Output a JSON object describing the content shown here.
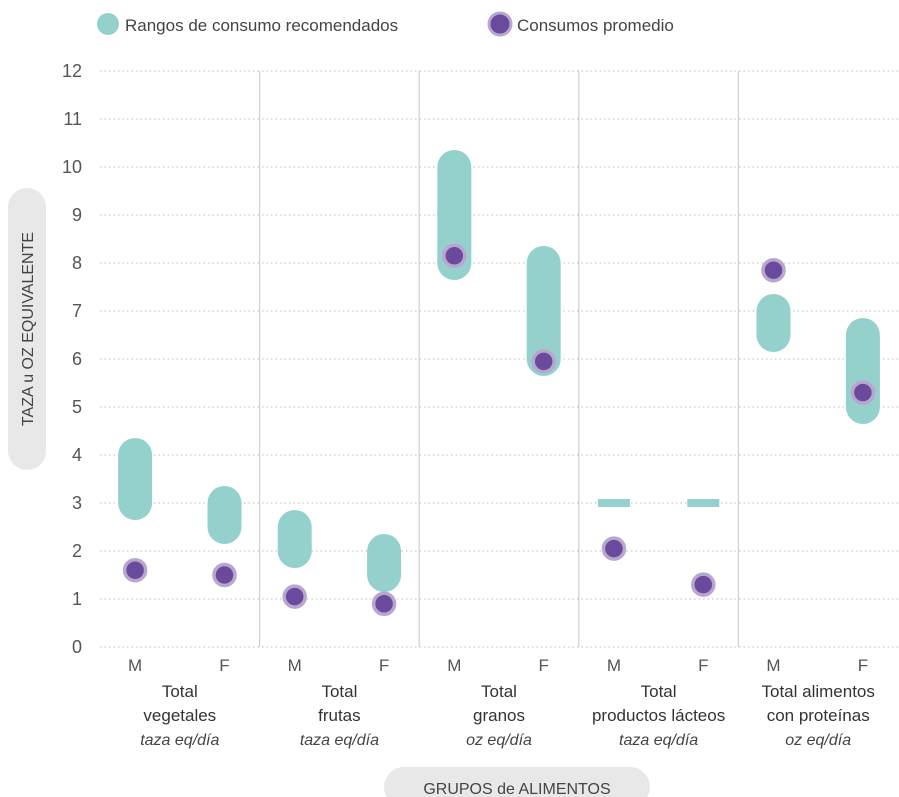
{
  "chart_data": {
    "type": "range-dot",
    "ylabel": "TAZA u OZ EQUIVALENTE",
    "xlabel": "GRUPOS de ALIMENTOS",
    "ylim": [
      0,
      12
    ],
    "yticks": [
      0,
      1,
      2,
      3,
      4,
      5,
      6,
      7,
      8,
      9,
      10,
      11,
      12
    ],
    "grid": "horizontal dotted",
    "legend_position": "top-left",
    "legend": [
      {
        "label": "Rangos de consumo recomendados",
        "color": "#94d1cd"
      },
      {
        "label": "Consumos promedio",
        "color": "#6a4a9c"
      }
    ],
    "groups": [
      {
        "line1": "Total",
        "line2": "vegetales",
        "unit": "taza eq/día"
      },
      {
        "line1": "Total",
        "line2": "frutas",
        "unit": "taza eq/día"
      },
      {
        "line1": "Total",
        "line2": "granos",
        "unit": "oz eq/día"
      },
      {
        "line1": "Total",
        "line2": "productos lácteos",
        "unit": "taza eq/día"
      },
      {
        "line1": "Total alimentos",
        "line2": "con proteínas",
        "unit": "oz eq/día"
      }
    ],
    "series": [
      {
        "name": "Rangos de consumo recomendados",
        "ranges": [
          [
            3.0,
            4.0
          ],
          [
            2.5,
            3.0
          ],
          [
            2.0,
            2.5
          ],
          [
            1.5,
            2.0
          ],
          [
            8.0,
            10.0
          ],
          [
            6.0,
            8.0
          ],
          [
            3.0,
            3.0
          ],
          [
            3.0,
            3.0
          ],
          [
            6.5,
            7.0
          ],
          [
            5.0,
            6.5
          ]
        ]
      },
      {
        "name": "Consumos promedio",
        "values": [
          1.6,
          1.5,
          1.05,
          0.9,
          8.15,
          5.95,
          2.05,
          1.3,
          7.85,
          5.3
        ]
      }
    ],
    "categories": [
      "M",
      "F",
      "M",
      "F",
      "M",
      "F",
      "M",
      "F",
      "M",
      "F"
    ],
    "colors": {
      "range": "#94d1cd",
      "dot": "#6a4a9c",
      "dot_stroke": "#b9a6cf",
      "grid": "#c8c8c8",
      "divider": "#d0d0d0",
      "axis_pill": "#e8e8e8"
    }
  }
}
